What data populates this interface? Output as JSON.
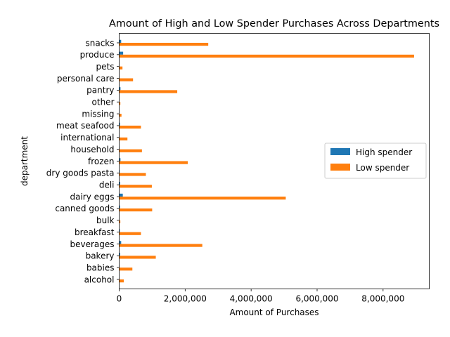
{
  "chart_data": {
    "type": "bar",
    "orientation": "horizontal",
    "title": "Amount of High and Low Spender Purchases Across Departments",
    "xlabel": "Amount of Purchases",
    "ylabel": "department",
    "xlim": [
      0,
      9400000
    ],
    "xticks": [
      0,
      2000000,
      4000000,
      6000000,
      8000000
    ],
    "xtick_labels": [
      "0",
      "2,000,000",
      "4,000,000",
      "6,000,000",
      "8,000,000"
    ],
    "grid": false,
    "legend_position": "center-right",
    "categories": [
      "alcohol",
      "babies",
      "bakery",
      "beverages",
      "breakfast",
      "bulk",
      "canned goods",
      "dairy eggs",
      "deli",
      "dry goods pasta",
      "frozen",
      "household",
      "international",
      "meat seafood",
      "missing",
      "other",
      "pantry",
      "personal care",
      "pets",
      "produce",
      "snacks"
    ],
    "series": [
      {
        "name": "High spender",
        "color": "#1f77b4",
        "values": [
          2000,
          8000,
          30000,
          60000,
          20000,
          2000,
          25000,
          110000,
          30000,
          15000,
          40000,
          10000,
          5000,
          25000,
          2000,
          1000,
          40000,
          5000,
          2000,
          120000,
          60000
        ]
      },
      {
        "name": "Low spender",
        "color": "#ff7f0e",
        "values": [
          140000,
          400000,
          1110000,
          2520000,
          660000,
          35000,
          1000000,
          5050000,
          990000,
          810000,
          2080000,
          690000,
          250000,
          660000,
          70000,
          36000,
          1760000,
          420000,
          100000,
          8940000,
          2700000
        ]
      }
    ]
  }
}
